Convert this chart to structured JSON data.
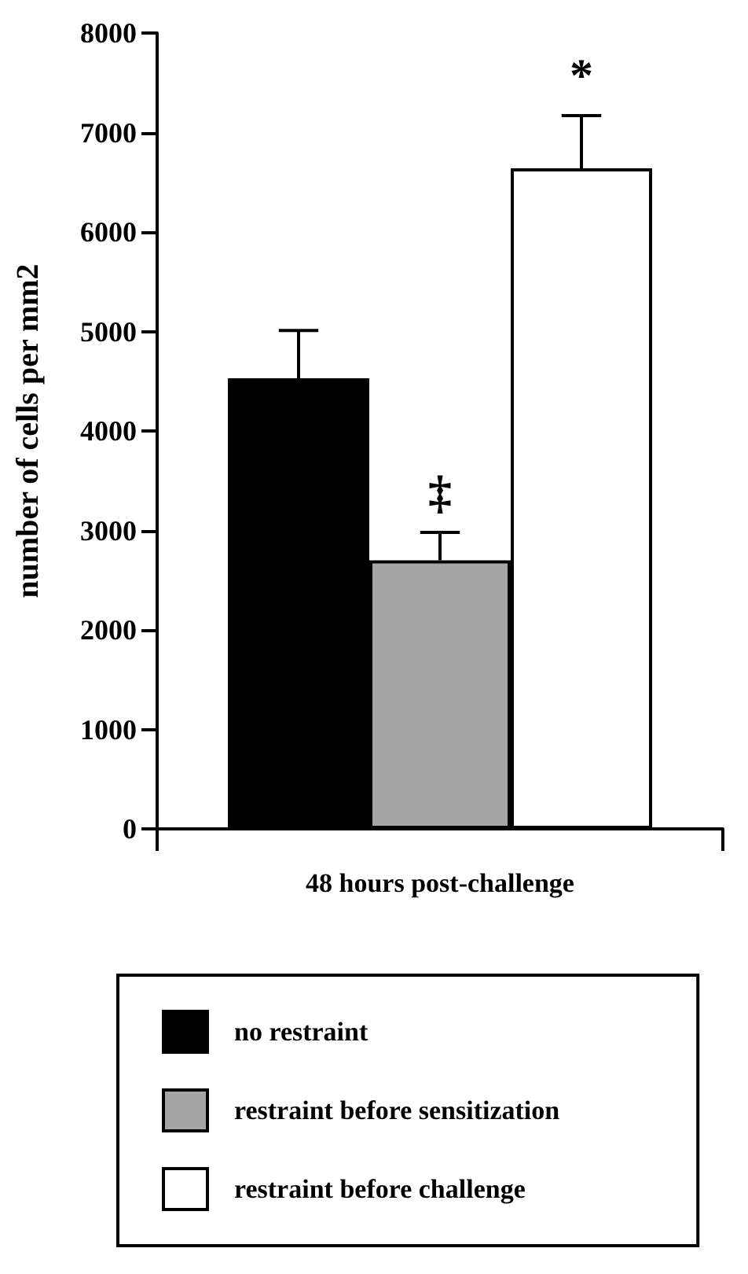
{
  "chart_data": {
    "type": "bar",
    "categories": [
      null,
      null,
      null
    ],
    "xlabel": "48 hours post-challenge",
    "ylabel": "number of cells per mm2",
    "ylim": [
      0,
      8000
    ],
    "yticks": [
      0,
      1000,
      2000,
      3000,
      4000,
      5000,
      6000,
      7000,
      8000
    ],
    "grid": false,
    "legend": "bottom",
    "series": [
      {
        "name": "no restraint",
        "color": "#000000",
        "values": [
          4530,
          null,
          null
        ],
        "errors": [
          480,
          null,
          null
        ]
      },
      {
        "name": "restraint before sensitization",
        "color": "#a6a6a6",
        "values": [
          null,
          2700,
          null
        ],
        "errors": [
          null,
          280,
          null
        ]
      },
      {
        "name": "restraint before challenge",
        "color": "#ffffff",
        "values": [
          null,
          null,
          6640
        ],
        "errors": [
          null,
          null,
          530
        ]
      }
    ],
    "annotations": [
      "‡",
      "*"
    ]
  }
}
